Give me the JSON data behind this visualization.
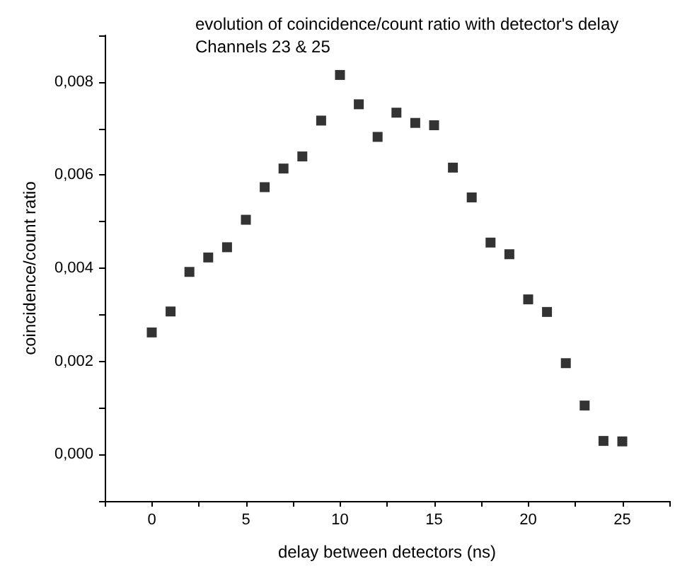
{
  "chart_data": {
    "type": "scatter",
    "title": "evolution of coincidence/count ratio with detector's delay",
    "subtitle": "Channels 23 & 25",
    "xlabel": "delay between detectors (ns)",
    "ylabel": "coincidence/count ratio",
    "x": [
      0,
      1,
      2,
      3,
      4,
      5,
      6,
      7,
      8,
      9,
      10,
      11,
      12,
      13,
      14,
      15,
      16,
      17,
      18,
      19,
      20,
      21,
      22,
      23,
      24,
      25
    ],
    "series": [
      {
        "color": "#000000",
        "values": [
          0.00262,
          0.00307,
          0.00392,
          0.00423,
          0.00445,
          0.00504,
          0.00574,
          0.00614,
          0.0064,
          0.00717,
          0.00815,
          0.00752,
          0.00682,
          0.00734,
          0.00712,
          0.00707,
          0.00616,
          0.00552,
          0.00455,
          0.0043,
          0.00333,
          0.00306,
          0.00196,
          0.00105,
          0.00029,
          0.00028
        ]
      }
    ],
    "xlim": [
      -2.5,
      27.5
    ],
    "xticks": [
      {
        "value": -2.5,
        "label": null
      },
      0,
      {
        "value": 2.5,
        "label": null
      },
      5,
      {
        "value": 7.5,
        "label": null
      },
      10,
      {
        "value": 12.5,
        "label": null
      },
      15,
      {
        "value": 17.5,
        "label": null
      },
      20,
      {
        "value": 22.5,
        "label": null
      },
      25,
      {
        "value": 27.5,
        "label": null
      }
    ],
    "ylim": [
      -0.001,
      0.009
    ],
    "yticks": [
      {
        "value": -0.001,
        "label": null
      },
      {
        "value": 0,
        "label": "0,000"
      },
      {
        "value": 0.001,
        "label": null
      },
      {
        "value": 0.002,
        "label": "0,002"
      },
      {
        "value": 0.003,
        "label": null
      },
      {
        "value": 0.004,
        "label": "0,004"
      },
      {
        "value": 0.005,
        "label": null
      },
      {
        "value": 0.006,
        "label": "0,006"
      },
      {
        "value": 0.007,
        "label": null
      },
      {
        "value": 0.008,
        "label": "0,008"
      },
      {
        "value": 0.009,
        "label": null
      }
    ],
    "grid": false,
    "marker": "square"
  }
}
